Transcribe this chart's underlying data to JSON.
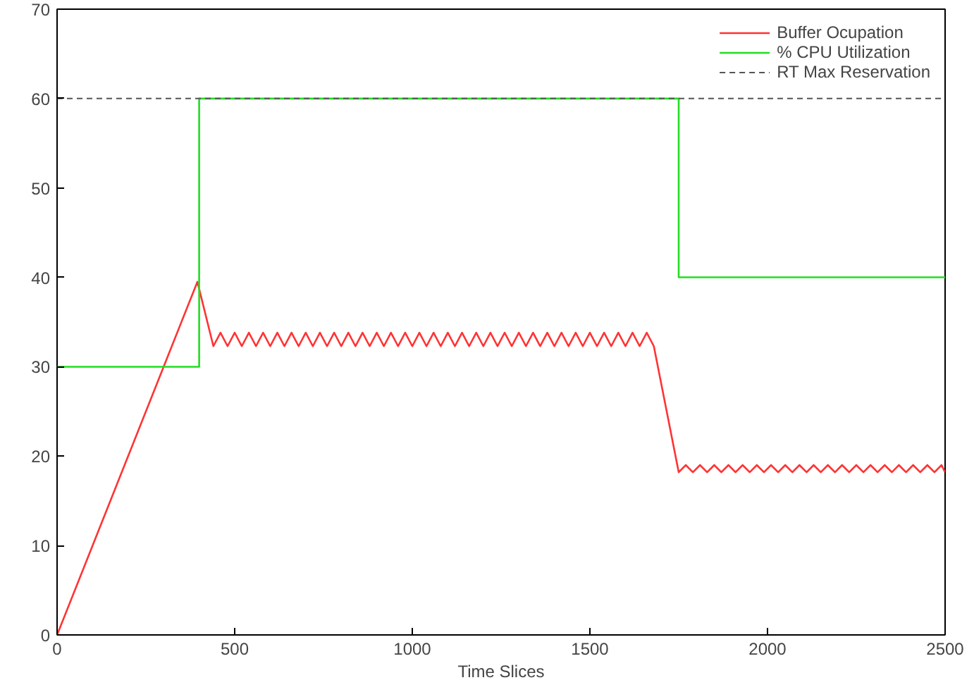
{
  "chart_data": {
    "type": "line",
    "xlabel": "Time Slices",
    "xlim": [
      0,
      2500
    ],
    "xticks": [
      0,
      500,
      1000,
      1500,
      2000,
      2500
    ],
    "ylim": [
      0,
      70
    ],
    "yticks": [
      0,
      10,
      20,
      30,
      40,
      50,
      60,
      70
    ],
    "grid": false,
    "legend": "top right",
    "marker": "none",
    "line_style": "solid",
    "series": [
      {
        "name": "Buffer Ocupation",
        "color": "#ff3333",
        "x": [
          0,
          395,
          440,
          460,
          480,
          500,
          520,
          540,
          560,
          580,
          600,
          620,
          640,
          660,
          680,
          700,
          720,
          740,
          760,
          780,
          800,
          820,
          840,
          860,
          880,
          900,
          920,
          940,
          960,
          980,
          1000,
          1020,
          1040,
          1060,
          1080,
          1100,
          1120,
          1140,
          1160,
          1180,
          1200,
          1220,
          1240,
          1260,
          1280,
          1300,
          1320,
          1340,
          1360,
          1380,
          1400,
          1420,
          1440,
          1460,
          1480,
          1500,
          1520,
          1540,
          1560,
          1580,
          1600,
          1620,
          1640,
          1660,
          1680,
          1750,
          1770,
          1790,
          1810,
          1830,
          1850,
          1870,
          1890,
          1910,
          1930,
          1950,
          1970,
          1990,
          2010,
          2030,
          2050,
          2070,
          2090,
          2110,
          2130,
          2150,
          2170,
          2190,
          2210,
          2230,
          2250,
          2270,
          2290,
          2310,
          2330,
          2350,
          2370,
          2390,
          2410,
          2430,
          2450,
          2470,
          2490,
          2500
        ],
        "values": [
          0,
          39.5,
          32.3,
          33.8,
          32.3,
          33.8,
          32.3,
          33.8,
          32.3,
          33.8,
          32.3,
          33.8,
          32.3,
          33.8,
          32.3,
          33.8,
          32.3,
          33.8,
          32.3,
          33.8,
          32.3,
          33.8,
          32.3,
          33.8,
          32.3,
          33.8,
          32.3,
          33.8,
          32.3,
          33.8,
          32.3,
          33.8,
          32.3,
          33.8,
          32.3,
          33.8,
          32.3,
          33.8,
          32.3,
          33.8,
          32.3,
          33.8,
          32.3,
          33.8,
          32.3,
          33.8,
          32.3,
          33.8,
          32.3,
          33.8,
          32.3,
          33.8,
          32.3,
          33.8,
          32.3,
          33.8,
          32.3,
          33.8,
          32.3,
          33.8,
          32.3,
          33.8,
          32.3,
          33.8,
          32.3,
          18.2,
          19.0,
          18.2,
          19.0,
          18.2,
          19.0,
          18.2,
          19.0,
          18.2,
          19.0,
          18.2,
          19.0,
          18.2,
          19.0,
          18.2,
          19.0,
          18.2,
          19.0,
          18.2,
          19.0,
          18.2,
          19.0,
          18.2,
          19.0,
          18.2,
          19.0,
          18.2,
          19.0,
          18.2,
          19.0,
          18.2,
          19.0,
          18.2,
          19.0,
          18.2,
          19.0,
          18.2,
          19.0,
          18.2
        ]
      },
      {
        "name": "% CPU Utilization",
        "color": "#22dd22",
        "x": [
          0,
          400,
          400,
          1750,
          1750,
          2500
        ],
        "values": [
          30,
          30,
          60,
          60,
          40,
          40
        ]
      }
    ],
    "ref_lines": [
      {
        "axis": "y",
        "value": 60,
        "label": "RT Max Reservation",
        "color": "#555555",
        "line_style": "dashed"
      }
    ]
  }
}
